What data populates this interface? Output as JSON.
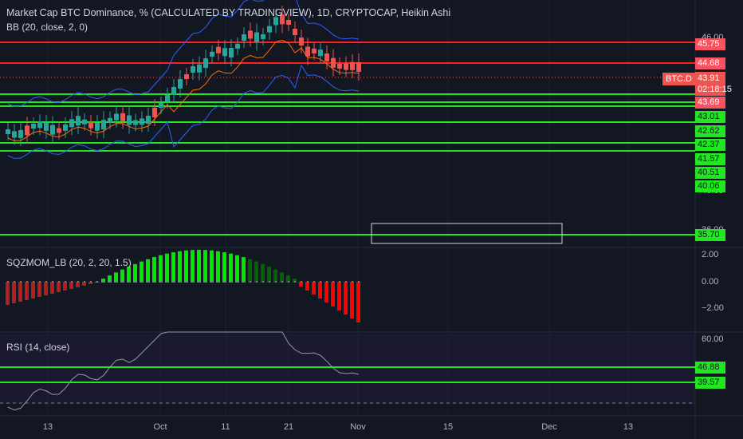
{
  "header": {
    "title": "Market Cap BTC Dominance, % (CALCULATED BY TRADINGVIEW), 1D, CRYPTOCAP, Heikin Ashi",
    "bb_legend": "BB (20, close, 2, 0)"
  },
  "panes": {
    "squeeze_legend": "SQZMOM_LB (20, 2, 20, 1.5)",
    "rsi_legend": "RSI (14, close)"
  },
  "price_axis": {
    "symbol_tag": "BTC.D",
    "last_price": "43.91",
    "countdown": "02:18:15",
    "red_levels": [
      "45.75",
      "44.68"
    ],
    "green_levels": [
      "43.69",
      "43.01",
      "42.62",
      "42.37",
      "41.57",
      "40.51",
      "40.06",
      "35.70"
    ],
    "partial_labels": [
      "46.00",
      "36.00",
      "40.00"
    ],
    "squeeze_ticks": [
      "2.00",
      "0.00",
      "−2.00"
    ],
    "rsi_ticks": [
      "60.00"
    ],
    "rsi_green_levels": [
      "46.88",
      "39.57"
    ]
  },
  "time_axis": {
    "labels": [
      "13",
      "Oct",
      "11",
      "21",
      "Nov",
      "15",
      "Dec",
      "13"
    ]
  },
  "colors": {
    "background": "#131722",
    "up": "#26a69a",
    "down": "#ef5350",
    "level_red": "#ff1f1f",
    "level_green": "#22e622",
    "bb_band": "#2962ff",
    "bb_basis": "#ff6d00",
    "rsi_line": "#9598a1",
    "squeeze_pos": "#00e600",
    "squeeze_neg": "#ff0000"
  }
}
